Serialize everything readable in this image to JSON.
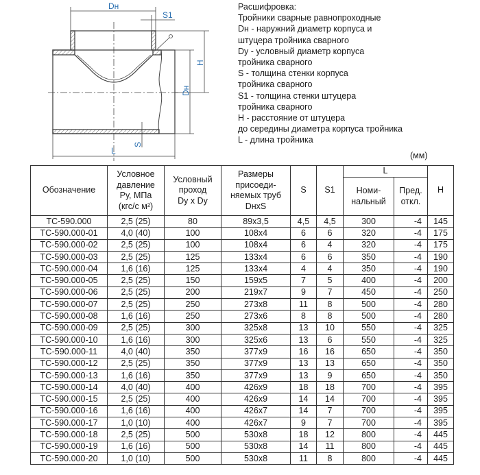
{
  "drawing": {
    "labels": {
      "dh_top": "Dн",
      "s1": "S1",
      "h": "H",
      "dh_side": "Dн",
      "s": "S",
      "l": "L"
    },
    "line_color": "#444444",
    "label_color": "#2a6fb0"
  },
  "legend": {
    "lines": [
      "Расшифровка:",
      "Тройники сварные равнопроходные",
      "Dн - наружний диаметр корпуса и",
      "штуцера тройника сварного",
      "Dy - условный диаметр корпуса",
      "тройника сварного",
      "S - толщина стенки корпуса",
      "тройника сварного",
      "S1 - толщина стенки штуцера",
      "тройника сварного",
      "H - расстояние от штуцера",
      "до середины диаметра корпуса тройника",
      "L - длина тройника"
    ],
    "units": "(мм)"
  },
  "table": {
    "headers": {
      "designation": "Обозначение",
      "pressure": [
        "Условное",
        "давление",
        "Ру, МПа",
        "(кгс/с м²)"
      ],
      "bore": [
        "Условный",
        "проход",
        "Dy x Dy"
      ],
      "pipe_size": [
        "Размеры",
        "присоеди-",
        "няемых труб",
        "DнxS"
      ],
      "s": "S",
      "s1": "S1",
      "l": "L",
      "l_nominal": [
        "Номи-",
        "нальный"
      ],
      "l_tolerance": [
        "Пред.",
        "откл."
      ],
      "h": "H"
    },
    "rows": [
      [
        "ТС-590.000",
        "2,5 (25)",
        "80",
        "89x3,5",
        "4,5",
        "4,5",
        "300",
        "-4",
        "145"
      ],
      [
        "ТС-590.000-01",
        "4,0 (40)",
        "100",
        "108x4",
        "6",
        "6",
        "320",
        "-4",
        "175"
      ],
      [
        "ТС-590.000-02",
        "2,5 (25)",
        "100",
        "108x4",
        "6",
        "4",
        "320",
        "-4",
        "175"
      ],
      [
        "ТС-590.000-03",
        "2,5 (25)",
        "125",
        "133x4",
        "6",
        "6",
        "350",
        "-4",
        "190"
      ],
      [
        "ТС-590.000-04",
        "1,6 (16)",
        "125",
        "133x4",
        "4",
        "4",
        "350",
        "-4",
        "190"
      ],
      [
        "ТС-590.000-05",
        "2,5 (25)",
        "150",
        "159x5",
        "7",
        "5",
        "400",
        "-4",
        "200"
      ],
      [
        "ТС-590.000-06",
        "2,5 (25)",
        "200",
        "219x7",
        "9",
        "7",
        "450",
        "-4",
        "250"
      ],
      [
        "ТС-590.000-07",
        "2,5 (25)",
        "250",
        "273x8",
        "11",
        "8",
        "500",
        "-4",
        "280"
      ],
      [
        "ТС-590.000-08",
        "1,6 (16)",
        "250",
        "273x6",
        "8",
        "8",
        "500",
        "-4",
        "280"
      ],
      [
        "ТС-590.000-09",
        "2,5 (25)",
        "300",
        "325x8",
        "13",
        "10",
        "550",
        "-4",
        "325"
      ],
      [
        "ТС-590.000-10",
        "1,6 (16)",
        "300",
        "325x6",
        "13",
        "6",
        "550",
        "-4",
        "325"
      ],
      [
        "ТС-590.000-11",
        "4,0 (40)",
        "350",
        "377x9",
        "16",
        "16",
        "650",
        "-4",
        "350"
      ],
      [
        "ТС-590.000-12",
        "2,5 (25)",
        "350",
        "377x9",
        "13",
        "13",
        "650",
        "-4",
        "350"
      ],
      [
        "ТС-590.000-13",
        "1,6 (16)",
        "350",
        "377x9",
        "13",
        "9",
        "650",
        "-4",
        "350"
      ],
      [
        "ТС-590.000-14",
        "4,0 (40)",
        "400",
        "426x9",
        "18",
        "18",
        "700",
        "-4",
        "395"
      ],
      [
        "ТС-590.000-15",
        "2,5 (25)",
        "400",
        "426x9",
        "14",
        "14",
        "700",
        "-4",
        "395"
      ],
      [
        "ТС-590.000-16",
        "1,6 (16)",
        "400",
        "426x7",
        "14",
        "7",
        "700",
        "-4",
        "395"
      ],
      [
        "ТС-590.000-17",
        "1,0 (10)",
        "400",
        "426x7",
        "9",
        "7",
        "700",
        "-4",
        "395"
      ],
      [
        "ТС-590.000-18",
        "2,5 (25)",
        "500",
        "530x8",
        "18",
        "12",
        "800",
        "-4",
        "445"
      ],
      [
        "ТС-590.000-19",
        "1,6 (16)",
        "500",
        "530x8",
        "14",
        "11",
        "800",
        "-4",
        "445"
      ],
      [
        "ТС-590.000-20",
        "1,0 (10)",
        "500",
        "530x8",
        "11",
        "8",
        "800",
        "-4",
        "445"
      ]
    ]
  }
}
